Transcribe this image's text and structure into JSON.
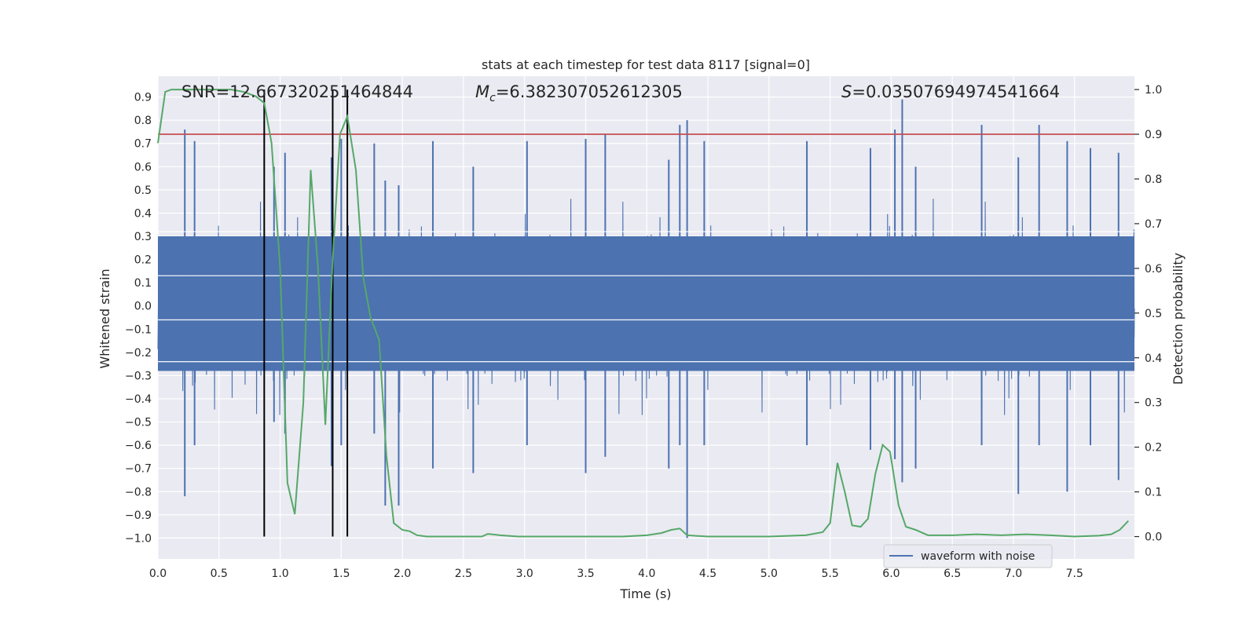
{
  "chart_data": {
    "type": "line",
    "title": "stats at each timestep for test data 8117 [signal=0]",
    "xlabel": "Time (s)",
    "ylabel_left": "Whitened strain",
    "ylabel_right": "Detection probability",
    "xlim": [
      0.0,
      7.99
    ],
    "ylim_left": [
      -1.09,
      0.99
    ],
    "ylim_right": [
      -0.05,
      1.03
    ],
    "x_ticks": [
      "0.0",
      "0.5",
      "1.0",
      "1.5",
      "2.0",
      "2.5",
      "3.0",
      "3.5",
      "4.0",
      "4.5",
      "5.0",
      "5.5",
      "6.0",
      "6.5",
      "7.0",
      "7.5"
    ],
    "y_left_ticks": [
      "0.9",
      "0.8",
      "0.7",
      "0.6",
      "0.5",
      "0.4",
      "0.3",
      "0.2",
      "0.1",
      "0.0",
      "−0.1",
      "−0.2",
      "−0.3",
      "−0.4",
      "−0.5",
      "−0.6",
      "−0.7",
      "−0.8",
      "−0.9",
      "−1.0"
    ],
    "y_right_ticks": [
      "1.0",
      "0.9",
      "0.8",
      "0.7",
      "0.6",
      "0.5",
      "0.4",
      "0.3",
      "0.2",
      "0.1",
      "0.0"
    ],
    "grid": true,
    "legend_position": "lower-right",
    "annotations": {
      "snr": "SNR=12.667320251464844",
      "mc_symbol": "M",
      "mc_sub": "c",
      "mc_value": "=6.382307052612305",
      "s_symbol": "S",
      "s_value": "=0.03507694974541664"
    },
    "threshold": {
      "value": 0.9,
      "axis": "right",
      "color": "#c44e52"
    },
    "vertical_lines": [
      0.87,
      1.43,
      1.55
    ],
    "series": [
      {
        "name": "waveform with noise",
        "axis": "left",
        "color": "#4c72b0",
        "description_values": "dense noise; strong spikes listed",
        "spikes": [
          [
            0.22,
            0.76,
            -0.82
          ],
          [
            0.3,
            0.71,
            -0.6
          ],
          [
            0.95,
            0.6,
            -0.5
          ],
          [
            1.04,
            0.66,
            -0.55
          ],
          [
            1.42,
            0.64,
            -0.69
          ],
          [
            1.5,
            0.72,
            -0.6
          ],
          [
            1.77,
            0.7,
            -0.55
          ],
          [
            1.86,
            0.54,
            -0.86
          ],
          [
            1.97,
            0.52,
            -0.86
          ],
          [
            2.25,
            0.71,
            -0.7
          ],
          [
            2.58,
            0.6,
            -0.72
          ],
          [
            3.02,
            0.71,
            -0.6
          ],
          [
            3.5,
            0.72,
            -0.72
          ],
          [
            3.66,
            0.74,
            -0.65
          ],
          [
            4.18,
            0.63,
            -0.7
          ],
          [
            4.27,
            0.78,
            -0.6
          ],
          [
            4.33,
            0.8,
            -1.0
          ],
          [
            4.47,
            0.71,
            -0.6
          ],
          [
            5.31,
            0.71,
            -0.6
          ],
          [
            5.83,
            0.68,
            -0.62
          ],
          [
            6.03,
            0.76,
            -0.66
          ],
          [
            6.09,
            0.89,
            -0.76
          ],
          [
            6.2,
            0.6,
            -0.7
          ],
          [
            6.74,
            0.78,
            -0.6
          ],
          [
            7.04,
            0.64,
            -0.81
          ],
          [
            7.21,
            0.78,
            -0.6
          ],
          [
            7.44,
            0.71,
            -0.8
          ],
          [
            7.63,
            0.68,
            -0.6
          ],
          [
            7.86,
            0.66,
            -0.75
          ]
        ]
      },
      {
        "name": "detection probability",
        "axis": "right",
        "color": "#55a868",
        "x": [
          0.0,
          0.06,
          0.11,
          0.2,
          0.3,
          0.4,
          0.5,
          0.6,
          0.7,
          0.8,
          0.87,
          0.93,
          1.0,
          1.06,
          1.12,
          1.19,
          1.25,
          1.31,
          1.37,
          1.43,
          1.49,
          1.55,
          1.62,
          1.68,
          1.74,
          1.81,
          1.87,
          1.93,
          2.0,
          2.06,
          2.12,
          2.2,
          2.3,
          2.5,
          2.65,
          2.7,
          2.8,
          2.95,
          3.0,
          3.2,
          3.5,
          3.8,
          4.0,
          4.12,
          4.2,
          4.27,
          4.33,
          4.5,
          5.0,
          5.3,
          5.44,
          5.5,
          5.56,
          5.62,
          5.68,
          5.75,
          5.81,
          5.87,
          5.93,
          5.99,
          6.06,
          6.12,
          6.2,
          6.3,
          6.5,
          6.7,
          6.9,
          7.1,
          7.3,
          7.5,
          7.7,
          7.8,
          7.87,
          7.94
        ],
        "y": [
          0.88,
          0.995,
          1.0,
          1.0,
          1.0,
          1.0,
          1.0,
          1.0,
          0.995,
          0.985,
          0.97,
          0.88,
          0.6,
          0.12,
          0.05,
          0.3,
          0.82,
          0.6,
          0.25,
          0.62,
          0.9,
          0.94,
          0.82,
          0.58,
          0.49,
          0.44,
          0.18,
          0.03,
          0.015,
          0.012,
          0.003,
          0.0,
          0.0,
          0.0,
          0.0,
          0.006,
          0.003,
          0.0,
          0.0,
          0.0,
          0.0,
          0.0,
          0.003,
          0.008,
          0.015,
          0.018,
          0.003,
          0.0,
          0.0,
          0.003,
          0.01,
          0.03,
          0.165,
          0.1,
          0.025,
          0.022,
          0.04,
          0.14,
          0.205,
          0.19,
          0.07,
          0.022,
          0.015,
          0.003,
          0.003,
          0.005,
          0.003,
          0.005,
          0.003,
          0.0,
          0.002,
          0.005,
          0.015,
          0.035
        ]
      }
    ]
  },
  "legend": {
    "label": "waveform with noise"
  }
}
